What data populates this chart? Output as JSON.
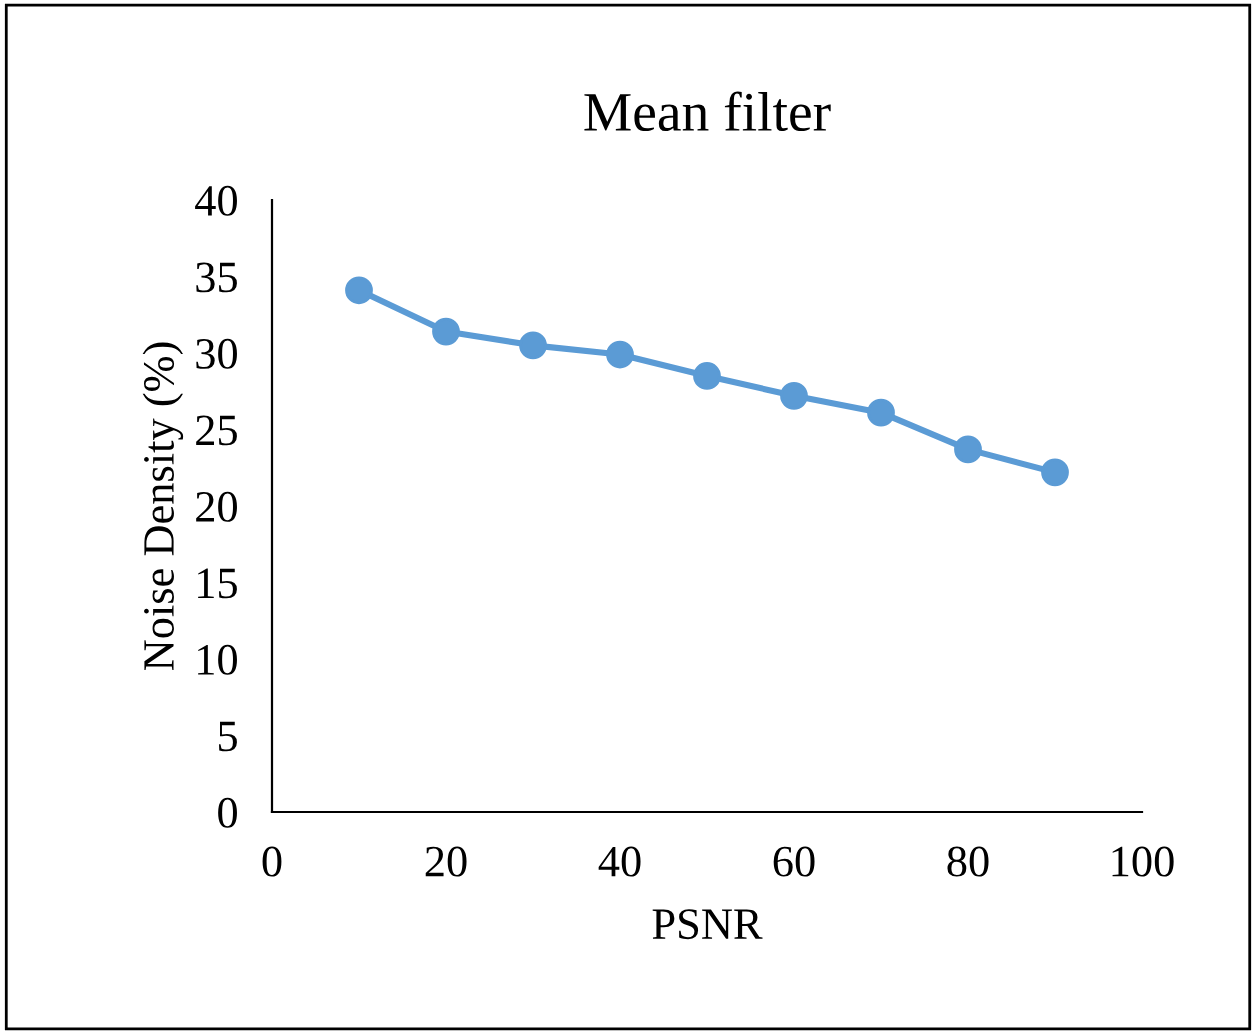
{
  "chart_data": {
    "type": "line",
    "title": "Mean filter",
    "xlabel": "PSNR",
    "ylabel": "Noise Density (%)",
    "x": [
      10,
      20,
      30,
      40,
      50,
      60,
      70,
      80,
      90
    ],
    "series": [
      {
        "color": "#5b9bd5",
        "values": [
          34.1,
          31.4,
          30.5,
          29.9,
          28.5,
          27.2,
          26.1,
          23.7,
          22.2
        ]
      }
    ],
    "xlim": [
      0,
      100
    ],
    "xticks": [
      0,
      20,
      40,
      60,
      80,
      100
    ],
    "ylim": [
      0,
      40
    ],
    "yticks": [
      0,
      5,
      10,
      15,
      20,
      25,
      30,
      35,
      40
    ],
    "grid": false,
    "legend": false,
    "marker": "circle",
    "line_style": "solid"
  }
}
